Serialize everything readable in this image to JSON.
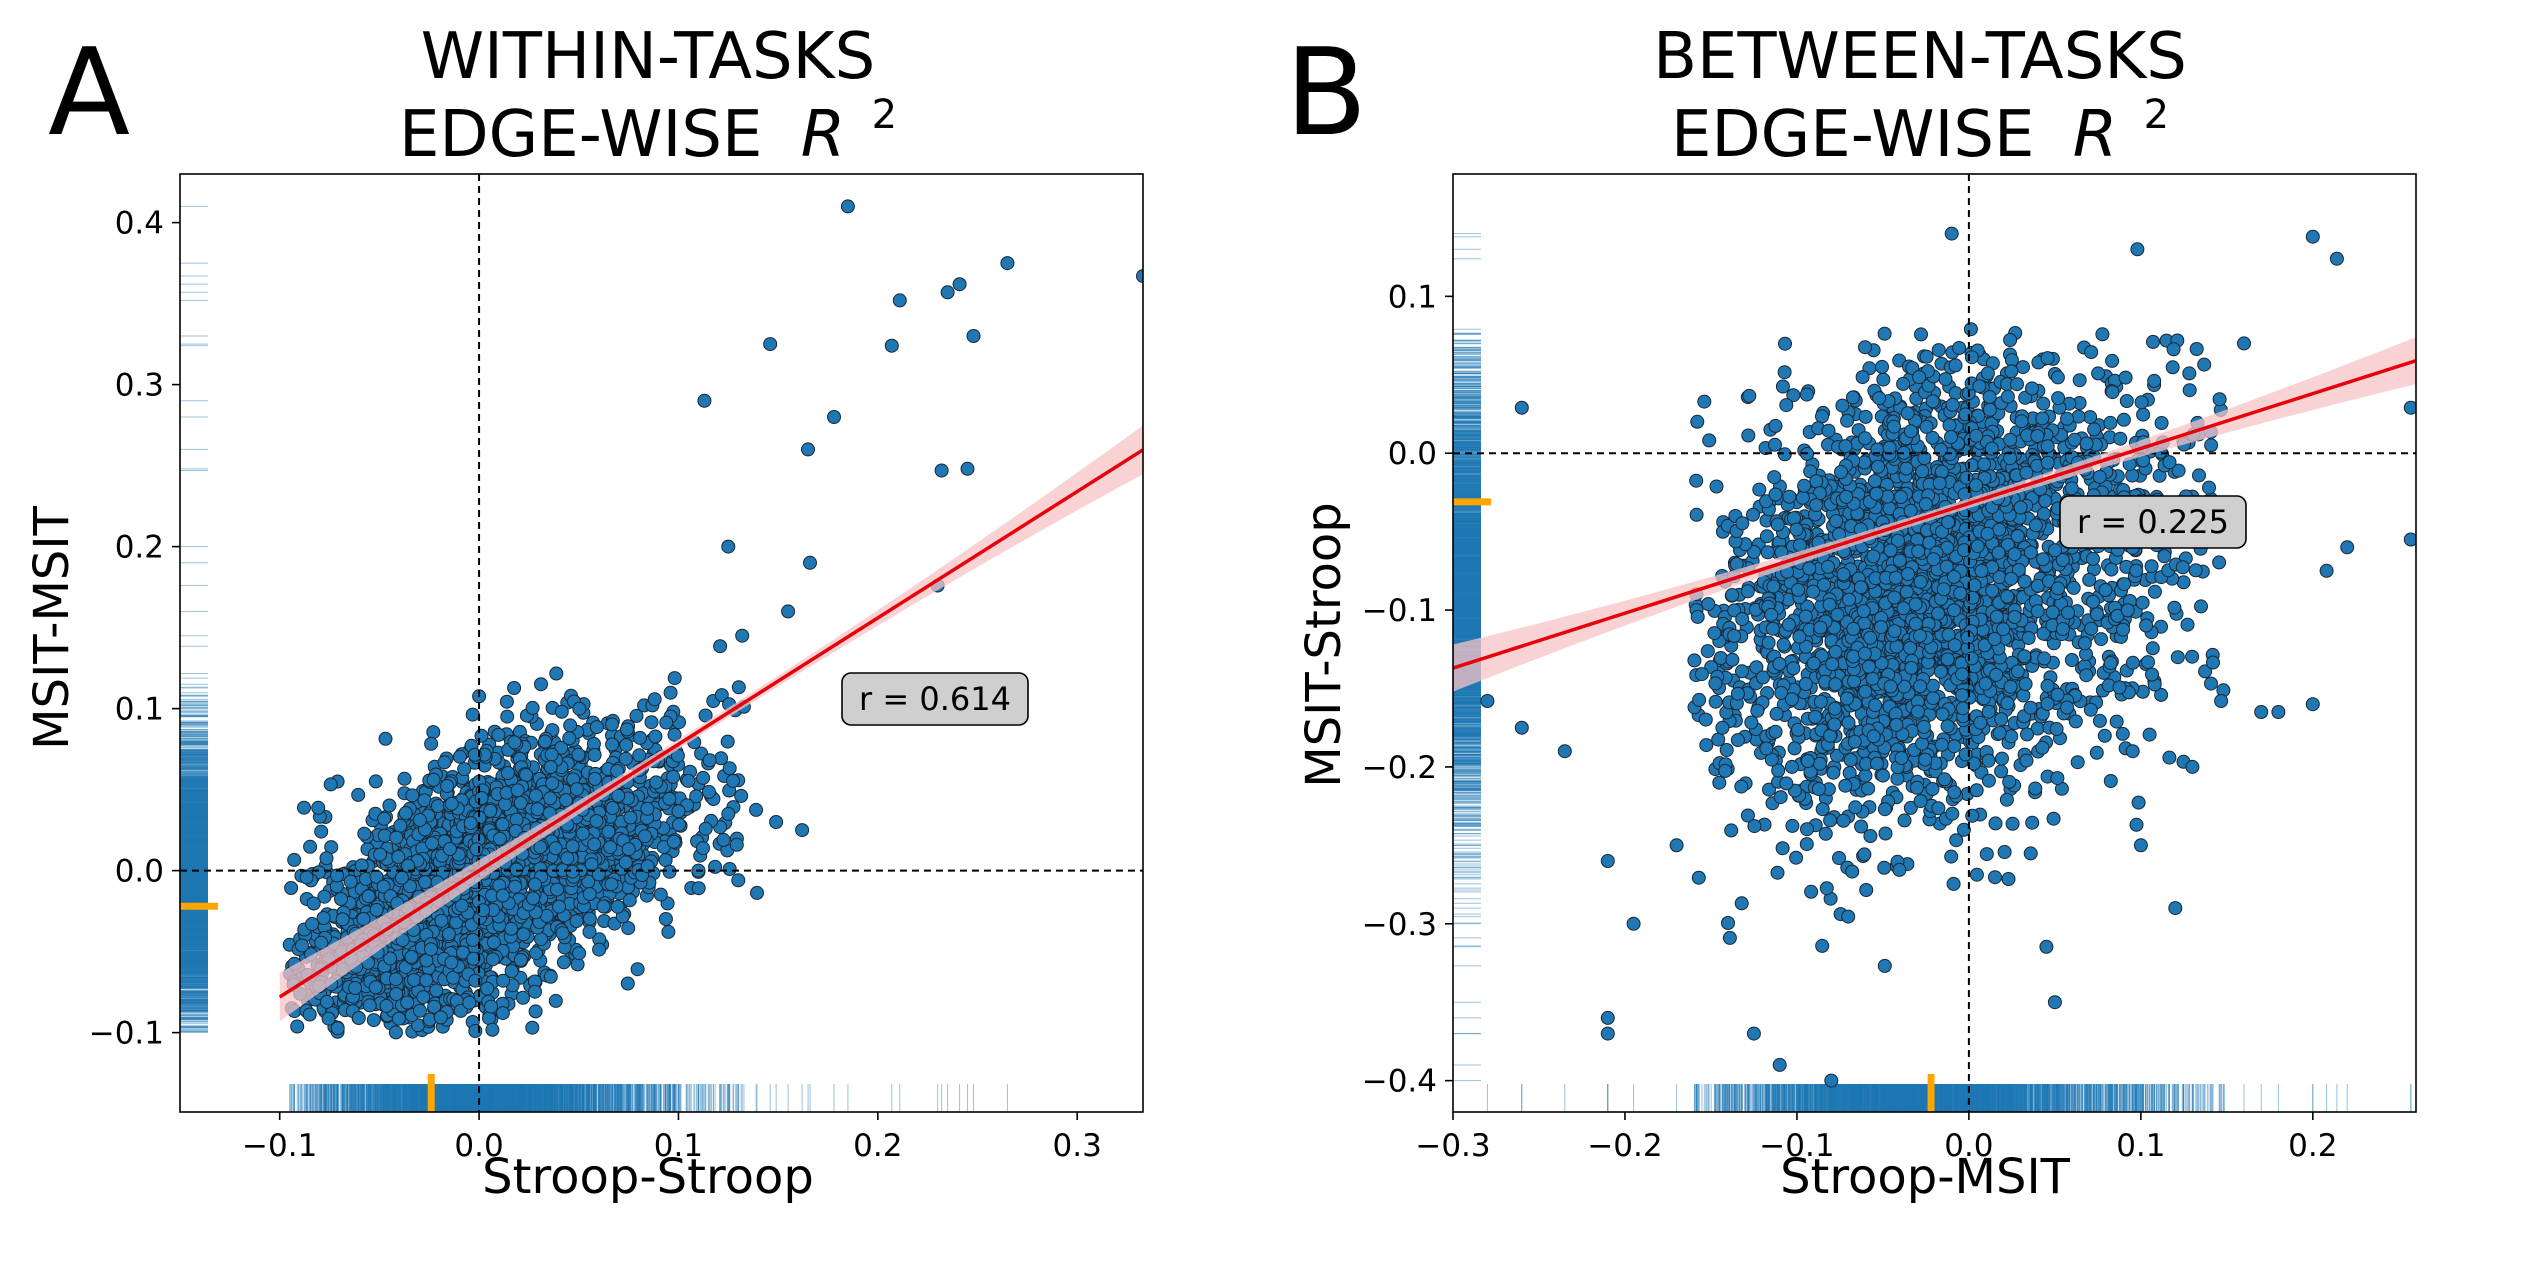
{
  "chart_data": [
    {
      "panel": "A",
      "type": "scatter",
      "title_line1": "WITHIN-TASKS",
      "title_line2": "EDGE-WISE",
      "title_symbol": "R",
      "title_sup": "2",
      "xlabel": "Stroop-Stroop",
      "ylabel": "MSIT-MSIT",
      "xlim": [
        -0.15,
        0.333
      ],
      "ylim": [
        -0.149,
        0.43
      ],
      "xticks": [
        -0.1,
        0.0,
        0.1,
        0.2,
        0.3
      ],
      "yticks": [
        -0.1,
        0.0,
        0.1,
        0.2,
        0.3,
        0.4
      ],
      "xtick_labels": [
        "−0.1",
        "0.0",
        "0.1",
        "0.2",
        "0.3"
      ],
      "ytick_labels": [
        "−0.1",
        "0.0",
        "0.1",
        "0.2",
        "0.3",
        "0.4"
      ],
      "annotation": "r = 0.614",
      "r": 0.614,
      "fit_line": {
        "slope": 0.78,
        "intercept": 0.0,
        "x_range": [
          -0.1,
          0.333
        ]
      },
      "reference_lines": {
        "x": 0.0,
        "y": 0.0
      },
      "marginal_mean_x": -0.024,
      "marginal_mean_y": -0.022,
      "cluster": {
        "cx": 0.0,
        "cy": -0.005,
        "sx": 0.04,
        "sy": 0.045,
        "rho": 0.614,
        "n": 3000,
        "x_min": -0.095,
        "x_max": 0.14,
        "y_min": -0.1,
        "y_max": 0.3
      },
      "outliers": [
        {
          "x": 0.185,
          "y": 0.41
        },
        {
          "x": 0.235,
          "y": 0.357
        },
        {
          "x": 0.241,
          "y": 0.362
        },
        {
          "x": 0.265,
          "y": 0.375
        },
        {
          "x": 0.333,
          "y": 0.367
        },
        {
          "x": 0.211,
          "y": 0.352
        },
        {
          "x": 0.207,
          "y": 0.324
        },
        {
          "x": 0.248,
          "y": 0.33
        },
        {
          "x": 0.146,
          "y": 0.325
        },
        {
          "x": 0.113,
          "y": 0.29
        },
        {
          "x": 0.165,
          "y": 0.26
        },
        {
          "x": 0.178,
          "y": 0.28
        },
        {
          "x": 0.232,
          "y": 0.247
        },
        {
          "x": 0.245,
          "y": 0.248
        },
        {
          "x": 0.166,
          "y": 0.19
        },
        {
          "x": 0.23,
          "y": 0.176
        },
        {
          "x": 0.155,
          "y": 0.16
        },
        {
          "x": 0.125,
          "y": 0.2
        },
        {
          "x": 0.132,
          "y": 0.145
        },
        {
          "x": 0.149,
          "y": 0.03
        },
        {
          "x": 0.162,
          "y": 0.025
        },
        {
          "x": 0.13,
          "y": -0.006
        },
        {
          "x": 0.11,
          "y": 0.0
        },
        {
          "x": 0.125,
          "y": 0.035
        }
      ],
      "colors": {
        "point": "#1f77b4",
        "edge": "#1a2733",
        "fit": "#e8000b",
        "band": "#f7c4c6",
        "mean": "#ffa500"
      }
    },
    {
      "panel": "B",
      "type": "scatter",
      "title_line1": "BETWEEN-TASKS",
      "title_line2": "EDGE-WISE",
      "title_symbol": "R",
      "title_sup": "2",
      "xlabel": "Stroop-MSIT",
      "ylabel": "MSIT-Stroop",
      "xlim": [
        -0.3,
        0.26
      ],
      "ylim": [
        -0.42,
        0.178
      ],
      "xticks": [
        -0.3,
        -0.2,
        -0.1,
        0.0,
        0.1,
        0.2
      ],
      "yticks": [
        -0.4,
        -0.3,
        -0.2,
        -0.1,
        0.0,
        0.1
      ],
      "xtick_labels": [
        "−0.3",
        "−0.2",
        "−0.1",
        "0.0",
        "0.1",
        "0.2"
      ],
      "ytick_labels": [
        "−0.4",
        "−0.3",
        "−0.2",
        "−0.1",
        "0.0",
        "0.1"
      ],
      "annotation": "r = 0.225",
      "r": 0.225,
      "fit_line": {
        "slope": 0.35,
        "intercept": -0.032,
        "x_range": [
          -0.3,
          0.26
        ]
      },
      "reference_lines": {
        "x": 0.0,
        "y": 0.0
      },
      "marginal_mean_x": -0.022,
      "marginal_mean_y": -0.031,
      "cluster": {
        "cx": -0.025,
        "cy": -0.085,
        "sx": 0.055,
        "sy": 0.07,
        "rho": 0.225,
        "n": 3200,
        "x_min": -0.16,
        "x_max": 0.15,
        "y_min": -0.33,
        "y_max": 0.08
      },
      "outliers": [
        {
          "x": 0.2,
          "y": 0.138
        },
        {
          "x": 0.214,
          "y": 0.124
        },
        {
          "x": 0.098,
          "y": 0.13
        },
        {
          "x": -0.01,
          "y": 0.14
        },
        {
          "x": 0.257,
          "y": 0.029
        },
        {
          "x": 0.257,
          "y": -0.055
        },
        {
          "x": -0.26,
          "y": 0.029
        },
        {
          "x": -0.28,
          "y": -0.158
        },
        {
          "x": -0.235,
          "y": -0.19
        },
        {
          "x": -0.26,
          "y": -0.175
        },
        {
          "x": -0.21,
          "y": -0.26
        },
        {
          "x": -0.21,
          "y": -0.36
        },
        {
          "x": -0.21,
          "y": -0.37
        },
        {
          "x": -0.125,
          "y": -0.37
        },
        {
          "x": -0.08,
          "y": -0.4
        },
        {
          "x": -0.11,
          "y": -0.39
        },
        {
          "x": 0.2,
          "y": -0.16
        },
        {
          "x": 0.18,
          "y": -0.165
        },
        {
          "x": 0.17,
          "y": -0.165
        },
        {
          "x": 0.208,
          "y": -0.075
        },
        {
          "x": 0.12,
          "y": -0.29
        },
        {
          "x": 0.1,
          "y": -0.25
        },
        {
          "x": 0.05,
          "y": -0.35
        },
        {
          "x": 0.13,
          "y": -0.2
        },
        {
          "x": -0.195,
          "y": -0.3
        },
        {
          "x": -0.17,
          "y": -0.25
        },
        {
          "x": 0.22,
          "y": -0.06
        },
        {
          "x": 0.16,
          "y": 0.07
        }
      ],
      "colors": {
        "point": "#1f77b4",
        "edge": "#1a2733",
        "fit": "#e8000b",
        "band": "#f7c4c6",
        "mean": "#ffa500"
      }
    }
  ]
}
